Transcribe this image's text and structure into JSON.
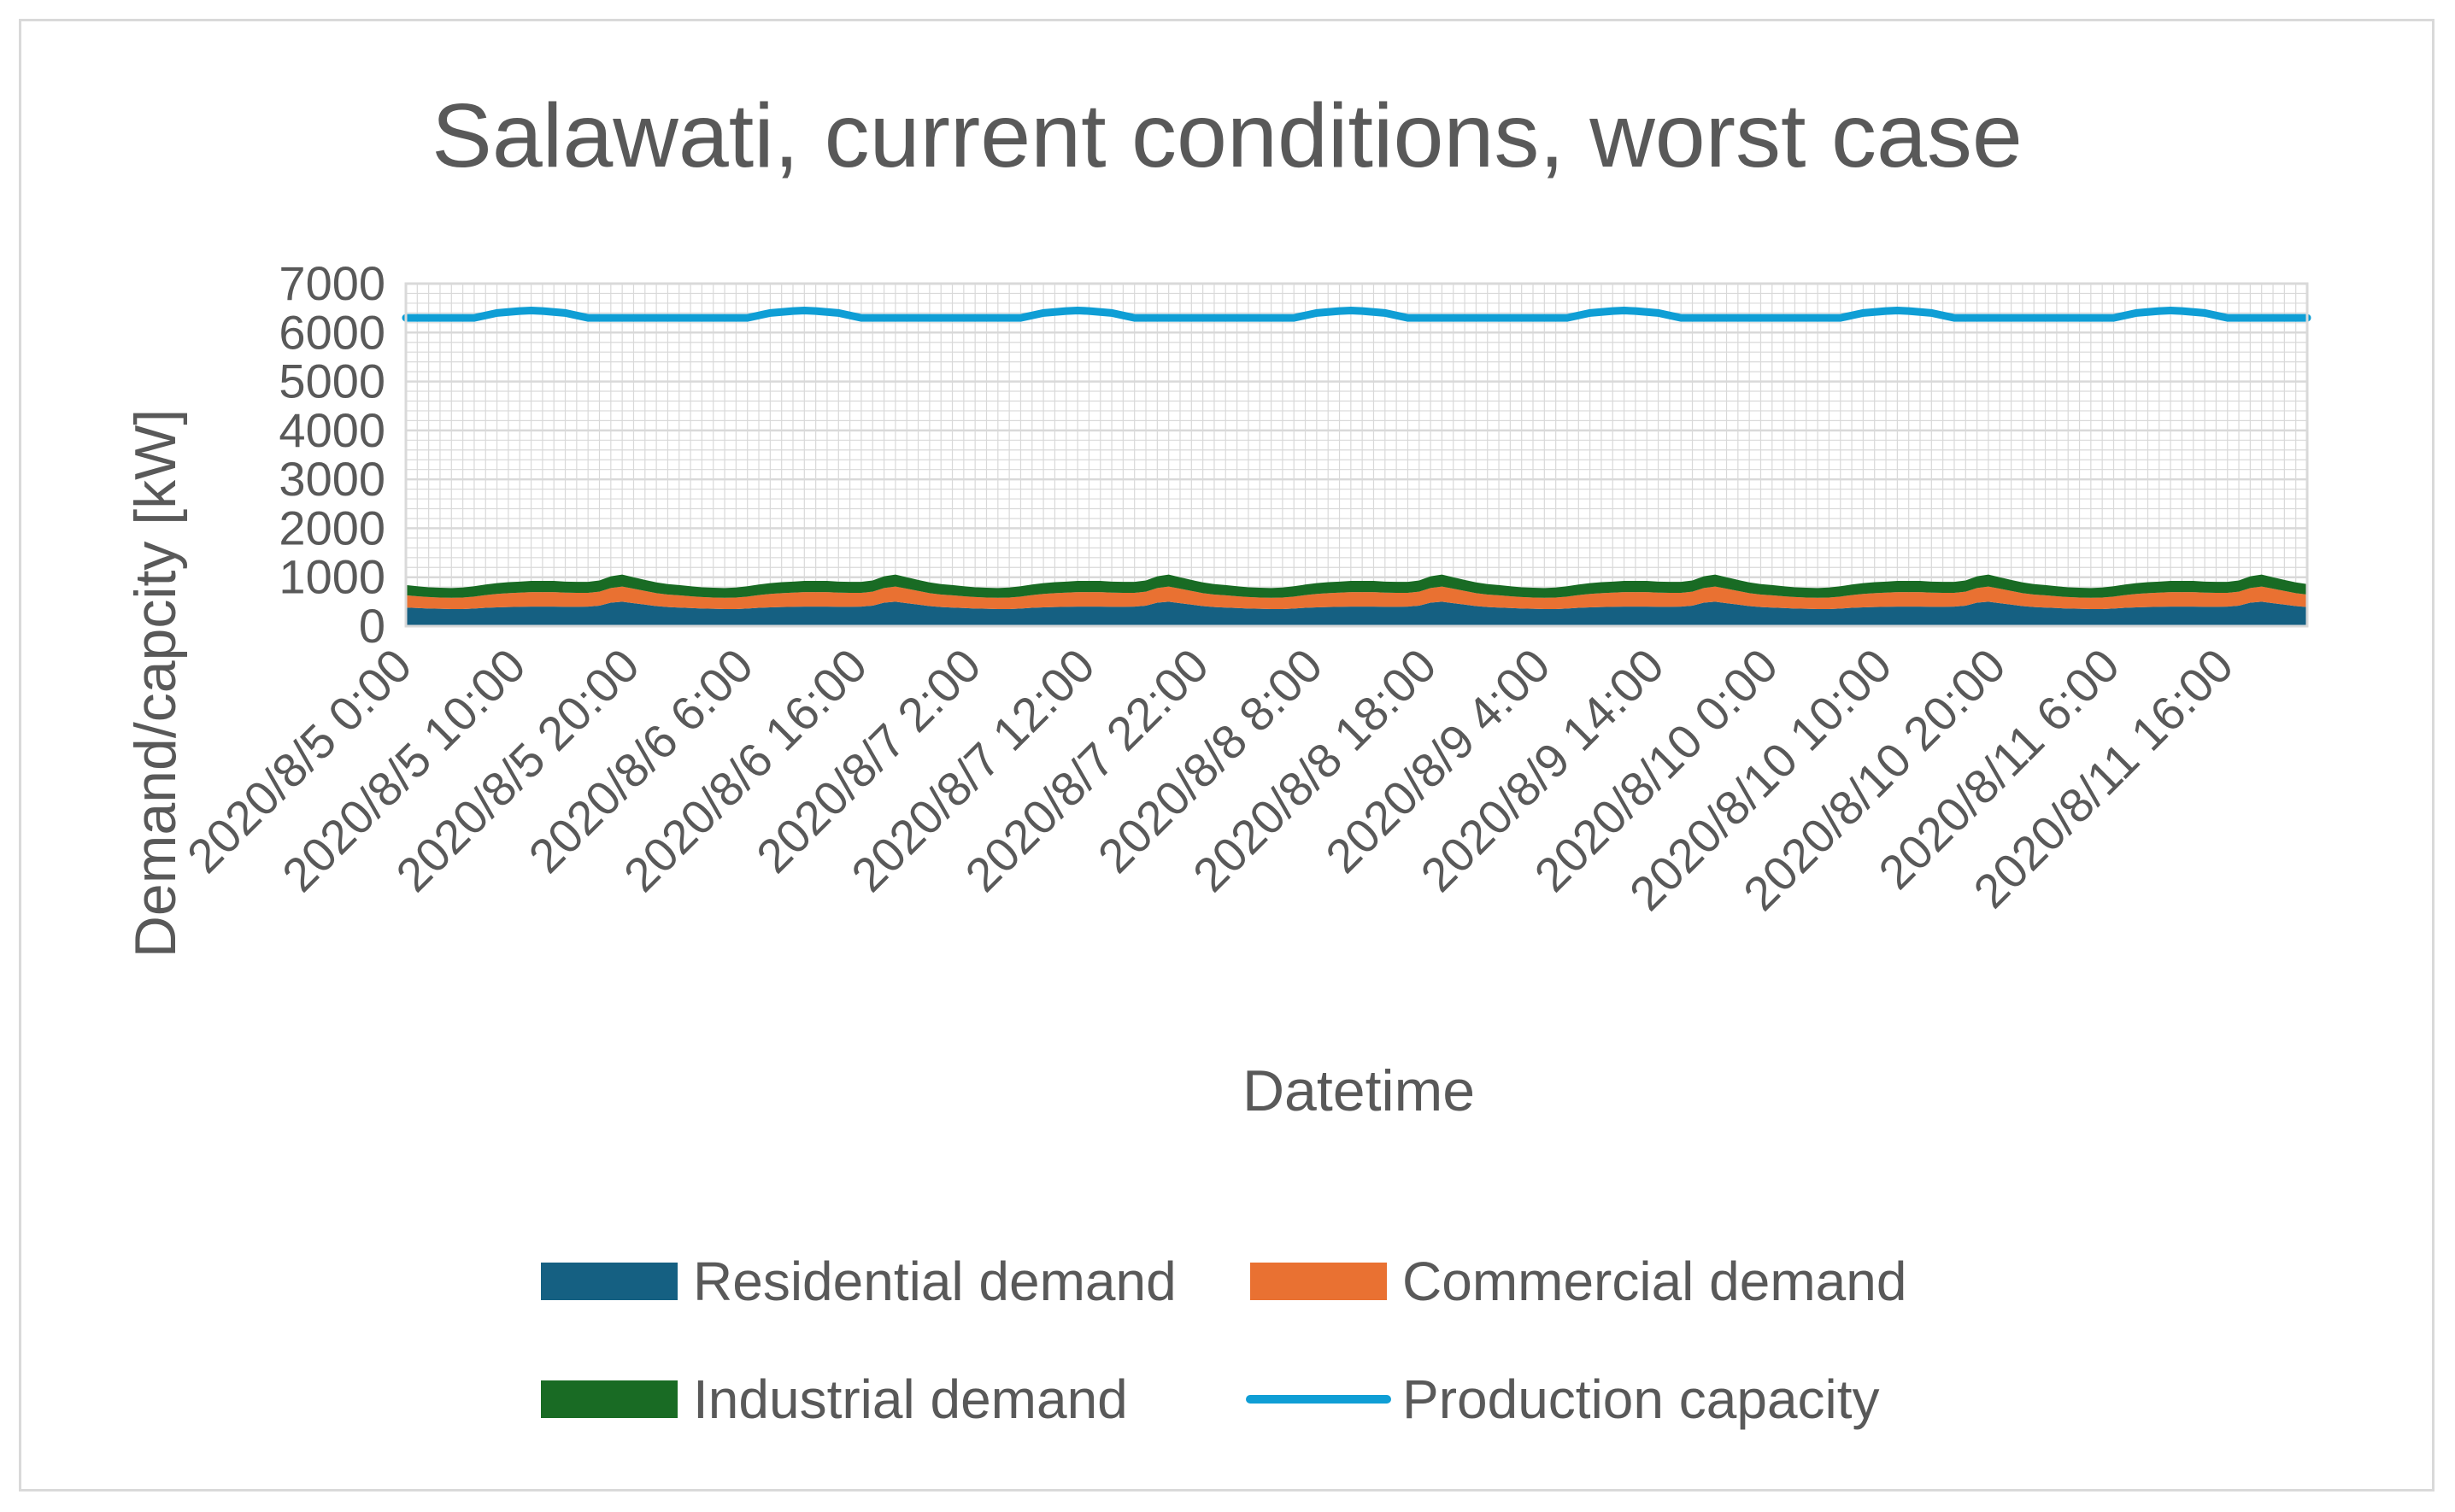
{
  "chart_data": {
    "type": "area",
    "stacked": true,
    "title": "Salawati, current conditions, worst case",
    "xlabel": "Datetime",
    "ylabel": "Demand/capcity [kW]",
    "ylim": [
      0,
      7000
    ],
    "yticks": [
      "0",
      "1000",
      "2000",
      "3000",
      "4000",
      "5000",
      "6000",
      "7000"
    ],
    "x_start": "2020/8/5 0:00",
    "x_step_hours": 1,
    "x_count": 168,
    "x_tick_labels": [
      {
        "index": 0,
        "label": "2020/8/5 0:00"
      },
      {
        "index": 10,
        "label": "2020/8/5 10:00"
      },
      {
        "index": 20,
        "label": "2020/8/5 20:00"
      },
      {
        "index": 30,
        "label": "2020/8/6 6:00"
      },
      {
        "index": 40,
        "label": "2020/8/6 16:00"
      },
      {
        "index": 50,
        "label": "2020/8/7 2:00"
      },
      {
        "index": 60,
        "label": "2020/8/7 12:00"
      },
      {
        "index": 70,
        "label": "2020/8/7 22:00"
      },
      {
        "index": 80,
        "label": "2020/8/8 8:00"
      },
      {
        "index": 90,
        "label": "2020/8/8 18:00"
      },
      {
        "index": 100,
        "label": "2020/8/9 4:00"
      },
      {
        "index": 110,
        "label": "2020/8/9 14:00"
      },
      {
        "index": 120,
        "label": "2020/8/10 0:00"
      },
      {
        "index": 130,
        "label": "2020/8/10 10:00"
      },
      {
        "index": 140,
        "label": "2020/8/10 20:00"
      },
      {
        "index": 150,
        "label": "2020/8/11 6:00"
      },
      {
        "index": 160,
        "label": "2020/8/11 16:00"
      }
    ],
    "daily_profile_hours": {
      "residential": [
        380,
        370,
        360,
        355,
        350,
        350,
        360,
        375,
        385,
        390,
        395,
        400,
        400,
        400,
        395,
        395,
        400,
        420,
        480,
        500,
        470,
        440,
        410,
        390
      ],
      "commercial": [
        250,
        240,
        235,
        230,
        230,
        235,
        245,
        260,
        275,
        285,
        290,
        295,
        295,
        295,
        290,
        285,
        280,
        285,
        300,
        310,
        295,
        280,
        265,
        255
      ],
      "industrial": [
        210,
        205,
        200,
        200,
        200,
        205,
        210,
        215,
        220,
        225,
        225,
        230,
        230,
        230,
        225,
        225,
        225,
        230,
        240,
        245,
        235,
        225,
        220,
        215
      ],
      "production_capacity": [
        6300,
        6300,
        6300,
        6300,
        6300,
        6300,
        6300,
        6350,
        6400,
        6420,
        6440,
        6450,
        6440,
        6420,
        6400,
        6350,
        6300,
        6300,
        6300,
        6300,
        6300,
        6300,
        6300,
        6300
      ]
    },
    "series": [
      {
        "name": "Residential demand",
        "kind": "area",
        "color": "#156082",
        "profile": "residential"
      },
      {
        "name": "Commercial demand",
        "kind": "area",
        "color": "#E97132",
        "profile": "commercial"
      },
      {
        "name": "Industrial demand",
        "kind": "area",
        "color": "#196B24",
        "profile": "industrial"
      },
      {
        "name": "Production capacity",
        "kind": "line",
        "color": "#0F9ED5",
        "profile": "production_capacity"
      }
    ],
    "grid": true,
    "legend_position": "bottom"
  },
  "colors": {
    "text": "#595959",
    "grid": "#d9d9d9",
    "frame": "#d9d9d9"
  }
}
